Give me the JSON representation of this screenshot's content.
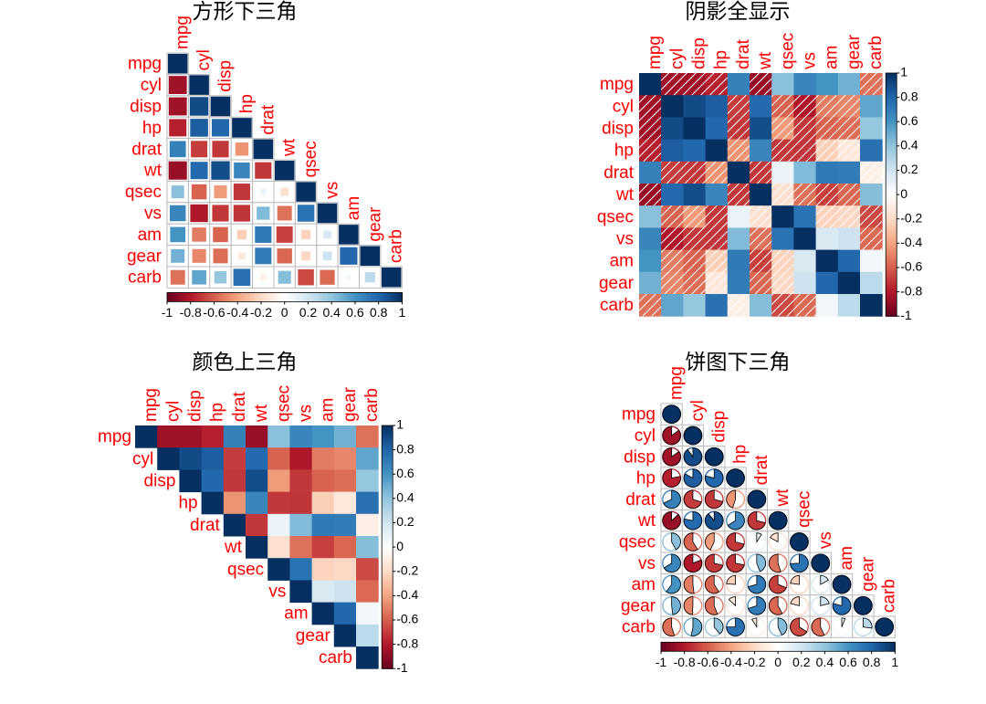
{
  "chart_data": [
    {
      "type": "corrplot",
      "title": "方形下三角",
      "method": "square",
      "triangle": "lower",
      "colorbar": "bottom",
      "labels": [
        "mpg",
        "cyl",
        "disp",
        "hp",
        "drat",
        "wt",
        "qsec",
        "vs",
        "am",
        "gear",
        "carb"
      ],
      "values": [
        [
          1
        ],
        [
          -0.85,
          1
        ],
        [
          -0.85,
          0.9,
          1
        ],
        [
          -0.78,
          0.83,
          0.79,
          1
        ],
        [
          0.68,
          -0.7,
          -0.71,
          -0.45,
          1
        ],
        [
          -0.87,
          0.78,
          0.89,
          0.66,
          -0.71,
          1
        ],
        [
          0.42,
          -0.59,
          -0.43,
          -0.71,
          0.09,
          -0.17,
          1
        ],
        [
          0.66,
          -0.81,
          -0.71,
          -0.72,
          0.44,
          -0.55,
          0.74,
          1
        ],
        [
          0.6,
          -0.52,
          -0.59,
          -0.24,
          0.71,
          -0.69,
          -0.23,
          0.17,
          1
        ],
        [
          0.48,
          -0.49,
          -0.56,
          -0.13,
          0.7,
          -0.58,
          -0.21,
          0.21,
          0.79,
          1
        ],
        [
          -0.55,
          0.53,
          0.39,
          0.75,
          -0.09,
          0.43,
          -0.66,
          -0.57,
          0.06,
          0.27,
          1
        ]
      ],
      "clim": [
        -1,
        1
      ],
      "ticks": [
        -1,
        -0.8,
        -0.6,
        -0.4,
        -0.2,
        0,
        0.2,
        0.4,
        0.6,
        0.8,
        1
      ],
      "palette": [
        "#67001F",
        "#B2182B",
        "#D6604D",
        "#F4A582",
        "#FDDBC7",
        "#FFFFFF",
        "#D1E5F0",
        "#92C5DE",
        "#4393C3",
        "#2166AC",
        "#053061"
      ]
    },
    {
      "type": "corrplot",
      "title": "阴影全显示",
      "method": "shade",
      "triangle": "full",
      "colorbar": "right",
      "labels": [
        "mpg",
        "cyl",
        "disp",
        "hp",
        "drat",
        "wt",
        "qsec",
        "vs",
        "am",
        "gear",
        "carb"
      ],
      "values": [
        [
          1,
          -0.85,
          -0.85,
          -0.78,
          0.68,
          -0.87,
          0.42,
          0.66,
          0.6,
          0.48,
          -0.55
        ],
        [
          -0.85,
          1,
          0.9,
          0.83,
          -0.7,
          0.78,
          -0.59,
          -0.81,
          -0.52,
          -0.49,
          0.53
        ],
        [
          -0.85,
          0.9,
          1,
          0.79,
          -0.71,
          0.89,
          -0.43,
          -0.71,
          -0.59,
          -0.56,
          0.39
        ],
        [
          -0.78,
          0.83,
          0.79,
          1,
          -0.45,
          0.66,
          -0.71,
          -0.72,
          -0.24,
          -0.13,
          0.75
        ],
        [
          0.68,
          -0.7,
          -0.71,
          -0.45,
          1,
          -0.71,
          0.09,
          0.44,
          0.71,
          0.7,
          -0.09
        ],
        [
          -0.87,
          0.78,
          0.89,
          0.66,
          -0.71,
          1,
          -0.17,
          -0.55,
          -0.69,
          -0.58,
          0.43
        ],
        [
          0.42,
          -0.59,
          -0.43,
          -0.71,
          0.09,
          -0.17,
          1,
          0.74,
          -0.23,
          -0.21,
          -0.66
        ],
        [
          0.66,
          -0.81,
          -0.71,
          -0.72,
          0.44,
          -0.55,
          0.74,
          1,
          0.17,
          0.21,
          -0.57
        ],
        [
          0.6,
          -0.52,
          -0.59,
          -0.24,
          0.71,
          -0.69,
          -0.23,
          0.17,
          1,
          0.79,
          0.06
        ],
        [
          0.48,
          -0.49,
          -0.56,
          -0.13,
          0.7,
          -0.58,
          -0.21,
          0.21,
          0.79,
          1,
          0.27
        ],
        [
          -0.55,
          0.53,
          0.39,
          0.75,
          -0.09,
          0.43,
          -0.66,
          -0.57,
          0.06,
          0.27,
          1
        ]
      ],
      "clim": [
        -1,
        1
      ],
      "ticks": [
        -1,
        -0.8,
        -0.6,
        -0.4,
        -0.2,
        0,
        0.2,
        0.4,
        0.6,
        0.8,
        1
      ],
      "palette": [
        "#67001F",
        "#B2182B",
        "#D6604D",
        "#F4A582",
        "#FDDBC7",
        "#FFFFFF",
        "#D1E5F0",
        "#92C5DE",
        "#4393C3",
        "#2166AC",
        "#053061"
      ]
    },
    {
      "type": "corrplot",
      "title": "颜色上三角",
      "method": "color",
      "triangle": "upper",
      "colorbar": "right",
      "labels": [
        "mpg",
        "cyl",
        "disp",
        "hp",
        "drat",
        "wt",
        "qsec",
        "vs",
        "am",
        "gear",
        "carb"
      ],
      "values": [
        [
          1,
          -0.85,
          -0.85,
          -0.78,
          0.68,
          -0.87,
          0.42,
          0.66,
          0.6,
          0.48,
          -0.55
        ],
        [
          1,
          0.9,
          0.83,
          -0.7,
          0.78,
          -0.59,
          -0.81,
          -0.52,
          -0.49,
          0.53
        ],
        [
          1,
          0.79,
          -0.71,
          0.89,
          -0.43,
          -0.71,
          -0.59,
          -0.56,
          0.39
        ],
        [
          1,
          -0.45,
          0.66,
          -0.71,
          -0.72,
          -0.24,
          -0.13,
          0.75
        ],
        [
          1,
          -0.71,
          0.09,
          0.44,
          0.71,
          0.7,
          -0.09
        ],
        [
          1,
          -0.17,
          -0.55,
          -0.69,
          -0.58,
          0.43
        ],
        [
          1,
          0.74,
          -0.23,
          -0.21,
          -0.66
        ],
        [
          1,
          0.17,
          0.21,
          -0.57
        ],
        [
          1,
          0.79,
          0.06
        ],
        [
          1,
          0.27
        ],
        [
          1
        ]
      ],
      "clim": [
        -1,
        1
      ],
      "ticks": [
        -1,
        -0.8,
        -0.6,
        -0.4,
        -0.2,
        0,
        0.2,
        0.4,
        0.6,
        0.8,
        1
      ],
      "palette": [
        "#67001F",
        "#B2182B",
        "#D6604D",
        "#F4A582",
        "#FDDBC7",
        "#FFFFFF",
        "#D1E5F0",
        "#92C5DE",
        "#4393C3",
        "#2166AC",
        "#053061"
      ]
    },
    {
      "type": "corrplot",
      "title": "饼图下三角",
      "method": "pie",
      "triangle": "lower",
      "colorbar": "bottom",
      "labels": [
        "mpg",
        "cyl",
        "disp",
        "hp",
        "drat",
        "wt",
        "qsec",
        "vs",
        "am",
        "gear",
        "carb"
      ],
      "values": [
        [
          1
        ],
        [
          -0.85,
          1
        ],
        [
          -0.85,
          0.9,
          1
        ],
        [
          -0.78,
          0.83,
          0.79,
          1
        ],
        [
          0.68,
          -0.7,
          -0.71,
          -0.45,
          1
        ],
        [
          -0.87,
          0.78,
          0.89,
          0.66,
          -0.71,
          1
        ],
        [
          0.42,
          -0.59,
          -0.43,
          -0.71,
          0.09,
          -0.17,
          1
        ],
        [
          0.66,
          -0.81,
          -0.71,
          -0.72,
          0.44,
          -0.55,
          0.74,
          1
        ],
        [
          0.6,
          -0.52,
          -0.59,
          -0.24,
          0.71,
          -0.69,
          -0.23,
          0.17,
          1
        ],
        [
          0.48,
          -0.49,
          -0.56,
          -0.13,
          0.7,
          -0.58,
          -0.21,
          0.21,
          0.79,
          1
        ],
        [
          -0.55,
          0.53,
          0.39,
          0.75,
          -0.09,
          0.43,
          -0.66,
          -0.57,
          0.06,
          0.27,
          1
        ]
      ],
      "clim": [
        -1,
        1
      ],
      "ticks": [
        -1,
        -0.8,
        -0.6,
        -0.4,
        -0.2,
        0,
        0.2,
        0.4,
        0.6,
        0.8,
        1
      ],
      "palette": [
        "#67001F",
        "#B2182B",
        "#D6604D",
        "#F4A582",
        "#FDDBC7",
        "#FFFFFF",
        "#D1E5F0",
        "#92C5DE",
        "#4393C3",
        "#2166AC",
        "#053061"
      ]
    }
  ]
}
